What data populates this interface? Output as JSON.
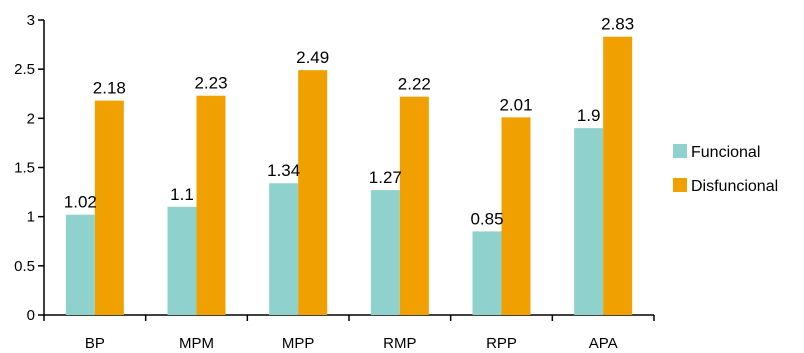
{
  "chart_data": {
    "type": "bar",
    "categories": [
      "BP",
      "MPM",
      "MPP",
      "RMP",
      "RPP",
      "APA"
    ],
    "series": [
      {
        "name": "Funcional",
        "color": "#8FD1CC",
        "values": [
          1.02,
          1.1,
          1.34,
          1.27,
          0.85,
          1.9
        ],
        "labels": [
          "1.02",
          "1.1",
          "1.34",
          "1.27",
          "0.85",
          "1.9"
        ]
      },
      {
        "name": "Disfuncional",
        "color": "#F0A000",
        "values": [
          2.18,
          2.23,
          2.49,
          2.22,
          2.01,
          2.83
        ],
        "labels": [
          "2.18",
          "2.23",
          "2.49",
          "2.22",
          "2.01",
          "2.83"
        ]
      }
    ],
    "ylim": [
      0,
      3
    ],
    "yticks": [
      "0",
      "0.5",
      "1",
      "1.5",
      "2",
      "2.5",
      "3"
    ],
    "title": "",
    "xlabel": "",
    "ylabel": "",
    "grid": false,
    "legend_position": "right"
  }
}
